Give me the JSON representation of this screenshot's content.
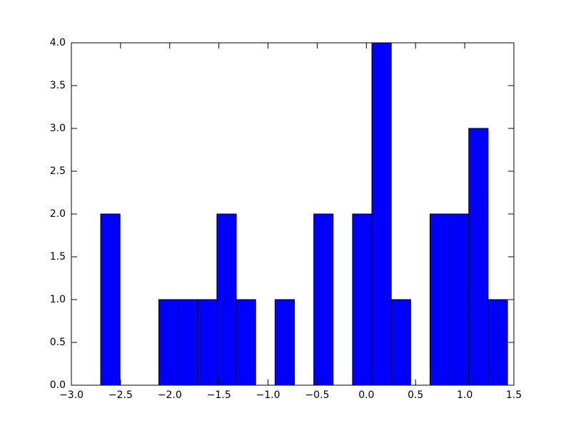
{
  "chart_data": {
    "type": "histogram",
    "bins": [
      -2.702,
      -2.505,
      -2.308,
      -2.111,
      -1.914,
      -1.717,
      -1.52,
      -1.323,
      -1.126,
      -0.929,
      -0.732,
      -0.535,
      -0.338,
      -0.141,
      0.056,
      0.253,
      0.45,
      0.647,
      0.844,
      1.041,
      1.238,
      1.435
    ],
    "counts": [
      2,
      0,
      0,
      1,
      1,
      1,
      2,
      1,
      0,
      1,
      0,
      2,
      0,
      2,
      4,
      1,
      0,
      2,
      2,
      3,
      1
    ],
    "color": "#0000ff",
    "xlim": [
      -3.0,
      1.5
    ],
    "xticks": [
      {
        "value": -3.0,
        "label": "−3.0"
      },
      {
        "value": -2.5,
        "label": "−2.5"
      },
      {
        "value": -2.0,
        "label": "−2.0"
      },
      {
        "value": -1.5,
        "label": "−1.5"
      },
      {
        "value": -1.0,
        "label": "−1.0"
      },
      {
        "value": -0.5,
        "label": "−0.5"
      },
      {
        "value": 0,
        "label": "0.0"
      },
      {
        "value": 0.5,
        "label": "0.5"
      },
      {
        "value": 1,
        "label": "1.0"
      },
      {
        "value": 1.5,
        "label": "1.5"
      }
    ],
    "ylim": [
      0,
      4.0
    ],
    "yticks": [
      {
        "value": 0,
        "label": "0.0"
      },
      {
        "value": 0.5,
        "label": "0.5"
      },
      {
        "value": 1,
        "label": "1.0"
      },
      {
        "value": 1.5,
        "label": "1.5"
      },
      {
        "value": 2,
        "label": "2.0"
      },
      {
        "value": 2.5,
        "label": "2.5"
      },
      {
        "value": 3,
        "label": "3.0"
      },
      {
        "value": 3.5,
        "label": "3.5"
      },
      {
        "value": 4,
        "label": "4.0"
      }
    ],
    "grid": false
  }
}
